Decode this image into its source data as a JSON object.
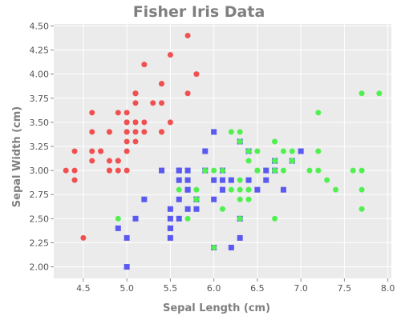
{
  "chart_data": {
    "type": "scatter",
    "title": "Fisher Iris Data",
    "xlabel": "Sepal Length (cm)",
    "ylabel": "Sepal Width (cm)",
    "xlim": [
      4.16,
      8.04
    ],
    "ylim": [
      1.88,
      4.52
    ],
    "x_ticks": [
      "4.5",
      "5.0",
      "5.5",
      "6.0",
      "6.5",
      "7.0",
      "7.5",
      "8.0"
    ],
    "y_ticks": [
      "2.00",
      "2.25",
      "2.50",
      "2.75",
      "3.00",
      "3.25",
      "3.50",
      "3.75",
      "4.00",
      "4.25",
      "4.50"
    ],
    "grid": true,
    "background_color": "#ebebeb",
    "series": [
      {
        "marker": "circle",
        "color": "#f05050",
        "points": [
          [
            5.1,
            3.5
          ],
          [
            4.9,
            3.0
          ],
          [
            4.7,
            3.2
          ],
          [
            4.6,
            3.1
          ],
          [
            5.0,
            3.6
          ],
          [
            5.4,
            3.9
          ],
          [
            4.6,
            3.4
          ],
          [
            5.0,
            3.4
          ],
          [
            4.4,
            2.9
          ],
          [
            4.9,
            3.1
          ],
          [
            5.4,
            3.7
          ],
          [
            4.8,
            3.4
          ],
          [
            4.8,
            3.0
          ],
          [
            4.3,
            3.0
          ],
          [
            5.8,
            4.0
          ],
          [
            5.7,
            4.4
          ],
          [
            5.4,
            3.9
          ],
          [
            5.1,
            3.5
          ],
          [
            5.7,
            3.8
          ],
          [
            5.1,
            3.8
          ],
          [
            5.4,
            3.4
          ],
          [
            5.1,
            3.7
          ],
          [
            4.6,
            3.6
          ],
          [
            5.1,
            3.3
          ],
          [
            4.8,
            3.4
          ],
          [
            5.0,
            3.0
          ],
          [
            5.0,
            3.4
          ],
          [
            5.2,
            3.5
          ],
          [
            5.2,
            3.4
          ],
          [
            4.7,
            3.2
          ],
          [
            4.8,
            3.1
          ],
          [
            5.4,
            3.4
          ],
          [
            5.2,
            4.1
          ],
          [
            5.5,
            4.2
          ],
          [
            4.9,
            3.1
          ],
          [
            5.0,
            3.2
          ],
          [
            5.5,
            3.5
          ],
          [
            4.9,
            3.6
          ],
          [
            4.4,
            3.0
          ],
          [
            5.1,
            3.4
          ],
          [
            5.0,
            3.5
          ],
          [
            4.5,
            2.3
          ],
          [
            4.4,
            3.2
          ],
          [
            5.0,
            3.5
          ],
          [
            5.1,
            3.8
          ],
          [
            4.8,
            3.0
          ],
          [
            5.1,
            3.8
          ],
          [
            4.6,
            3.2
          ],
          [
            5.3,
            3.7
          ],
          [
            5.0,
            3.3
          ]
        ]
      },
      {
        "marker": "square",
        "color": "#5a5af0",
        "points": [
          [
            7.0,
            3.2
          ],
          [
            6.4,
            3.2
          ],
          [
            6.9,
            3.1
          ],
          [
            5.5,
            2.3
          ],
          [
            6.5,
            2.8
          ],
          [
            5.7,
            2.8
          ],
          [
            6.3,
            3.3
          ],
          [
            4.9,
            2.4
          ],
          [
            6.6,
            2.9
          ],
          [
            5.2,
            2.7
          ],
          [
            5.0,
            2.0
          ],
          [
            5.9,
            3.0
          ],
          [
            6.0,
            2.2
          ],
          [
            6.1,
            2.9
          ],
          [
            5.6,
            2.9
          ],
          [
            6.7,
            3.1
          ],
          [
            5.6,
            3.0
          ],
          [
            5.8,
            2.7
          ],
          [
            6.2,
            2.2
          ],
          [
            5.6,
            2.5
          ],
          [
            5.9,
            3.2
          ],
          [
            6.1,
            2.8
          ],
          [
            6.3,
            2.5
          ],
          [
            6.1,
            2.8
          ],
          [
            6.4,
            2.9
          ],
          [
            6.6,
            3.0
          ],
          [
            6.8,
            2.8
          ],
          [
            6.7,
            3.0
          ],
          [
            6.0,
            2.9
          ],
          [
            5.7,
            2.6
          ],
          [
            5.5,
            2.4
          ],
          [
            5.5,
            2.4
          ],
          [
            5.8,
            2.7
          ],
          [
            6.0,
            2.7
          ],
          [
            5.4,
            3.0
          ],
          [
            6.0,
            3.4
          ],
          [
            6.7,
            3.1
          ],
          [
            6.3,
            2.3
          ],
          [
            5.6,
            3.0
          ],
          [
            5.5,
            2.5
          ],
          [
            5.5,
            2.6
          ],
          [
            6.1,
            3.0
          ],
          [
            5.8,
            2.6
          ],
          [
            5.0,
            2.3
          ],
          [
            5.6,
            2.7
          ],
          [
            5.7,
            3.0
          ],
          [
            5.7,
            2.9
          ],
          [
            6.2,
            2.9
          ],
          [
            5.1,
            2.5
          ],
          [
            5.7,
            2.8
          ]
        ]
      },
      {
        "marker": "circle",
        "color": "#50f050",
        "points": [
          [
            6.3,
            3.3
          ],
          [
            5.8,
            2.7
          ],
          [
            7.1,
            3.0
          ],
          [
            6.3,
            2.9
          ],
          [
            6.5,
            3.0
          ],
          [
            7.6,
            3.0
          ],
          [
            4.9,
            2.5
          ],
          [
            7.3,
            2.9
          ],
          [
            6.7,
            2.5
          ],
          [
            7.2,
            3.6
          ],
          [
            6.5,
            3.2
          ],
          [
            6.4,
            2.7
          ],
          [
            6.8,
            3.0
          ],
          [
            5.7,
            2.5
          ],
          [
            5.8,
            2.8
          ],
          [
            6.4,
            3.2
          ],
          [
            6.5,
            3.0
          ],
          [
            7.7,
            3.8
          ],
          [
            7.7,
            2.6
          ],
          [
            6.0,
            2.2
          ],
          [
            6.9,
            3.2
          ],
          [
            5.6,
            2.8
          ],
          [
            7.7,
            2.8
          ],
          [
            6.3,
            2.7
          ],
          [
            6.7,
            3.3
          ],
          [
            7.2,
            3.2
          ],
          [
            6.2,
            2.8
          ],
          [
            6.1,
            3.0
          ],
          [
            6.4,
            2.8
          ],
          [
            7.2,
            3.0
          ],
          [
            7.4,
            2.8
          ],
          [
            7.9,
            3.8
          ],
          [
            6.4,
            2.8
          ],
          [
            6.3,
            2.8
          ],
          [
            6.1,
            2.6
          ],
          [
            7.7,
            3.0
          ],
          [
            6.3,
            3.4
          ],
          [
            6.4,
            3.1
          ],
          [
            6.0,
            3.0
          ],
          [
            6.9,
            3.1
          ],
          [
            6.7,
            3.1
          ],
          [
            6.9,
            3.1
          ],
          [
            5.8,
            2.7
          ],
          [
            6.8,
            3.2
          ],
          [
            6.7,
            3.3
          ],
          [
            6.7,
            3.0
          ],
          [
            6.3,
            2.5
          ],
          [
            6.5,
            3.0
          ],
          [
            6.2,
            3.4
          ],
          [
            5.9,
            3.0
          ]
        ]
      }
    ]
  }
}
